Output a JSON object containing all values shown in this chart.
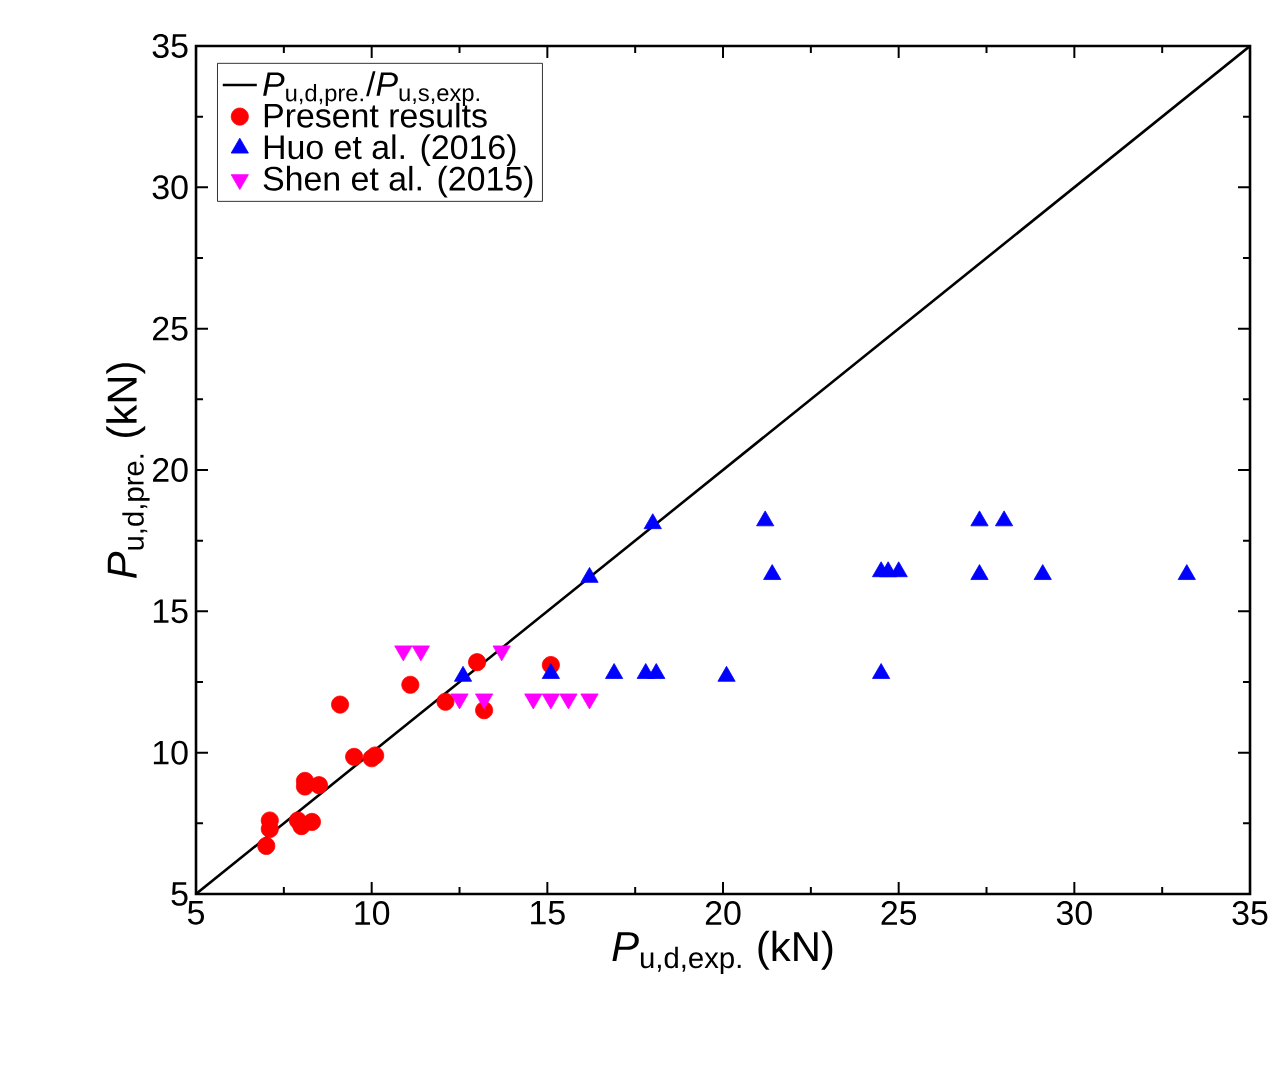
{
  "chart_data": {
    "type": "scatter",
    "xlabel": "*P*$_{u,d,exp.}$ (kN)",
    "ylabel": "*P*$_{u,d,pre.}$ (kN)",
    "xlim": [
      5,
      35
    ],
    "ylim": [
      5,
      35
    ],
    "xticks": [
      5,
      10,
      15,
      20,
      25,
      30,
      35
    ],
    "yticks": [
      5,
      10,
      15,
      20,
      25,
      30,
      35
    ],
    "grid": false,
    "legend": "top left",
    "series": [
      {
        "name": "*P*$_{u,d,pre.}$/*P*$_{u,s,exp.}$",
        "type": "line",
        "color": "#000000",
        "marker": "none",
        "line_style": "solid",
        "x": [
          5,
          35
        ],
        "values": [
          5,
          35
        ]
      },
      {
        "name": "Present results",
        "color": "#ff0000",
        "marker": "circle",
        "x": [
          7.0,
          7.1,
          7.1,
          7.9,
          8.0,
          8.3,
          8.1,
          8.1,
          8.5,
          9.1,
          9.5,
          10.0,
          10.1,
          11.1,
          12.1,
          13.0,
          13.2,
          15.1
        ],
        "values": [
          6.7,
          7.6,
          7.3,
          7.6,
          7.4,
          7.55,
          9.0,
          8.8,
          8.85,
          11.7,
          9.85,
          9.8,
          9.9,
          12.4,
          11.8,
          13.2,
          11.5,
          13.1
        ]
      },
      {
        "name": "Huo et al. (2016)",
        "color": "#0000ff",
        "marker": "triangle",
        "x": [
          12.6,
          15.1,
          16.9,
          17.8,
          18.1,
          20.1,
          24.5,
          16.2,
          21.4,
          24.5,
          24.7,
          25.0,
          27.3,
          29.1,
          33.2,
          18.0,
          21.2,
          27.3,
          28.0
        ],
        "values": [
          12.7,
          12.8,
          12.8,
          12.8,
          12.8,
          12.7,
          12.8,
          16.2,
          16.3,
          16.4,
          16.4,
          16.4,
          16.3,
          16.3,
          16.3,
          18.1,
          18.2,
          18.2,
          18.2
        ]
      },
      {
        "name": "Shen et al. (2015)",
        "color": "#ff00ff",
        "marker": "triangle-down",
        "x": [
          10.9,
          11.4,
          13.7,
          12.5,
          13.2,
          14.6,
          15.1,
          15.6,
          16.2
        ],
        "values": [
          13.6,
          13.6,
          13.6,
          11.9,
          11.9,
          11.9,
          11.9,
          11.9,
          11.9
        ]
      }
    ]
  }
}
